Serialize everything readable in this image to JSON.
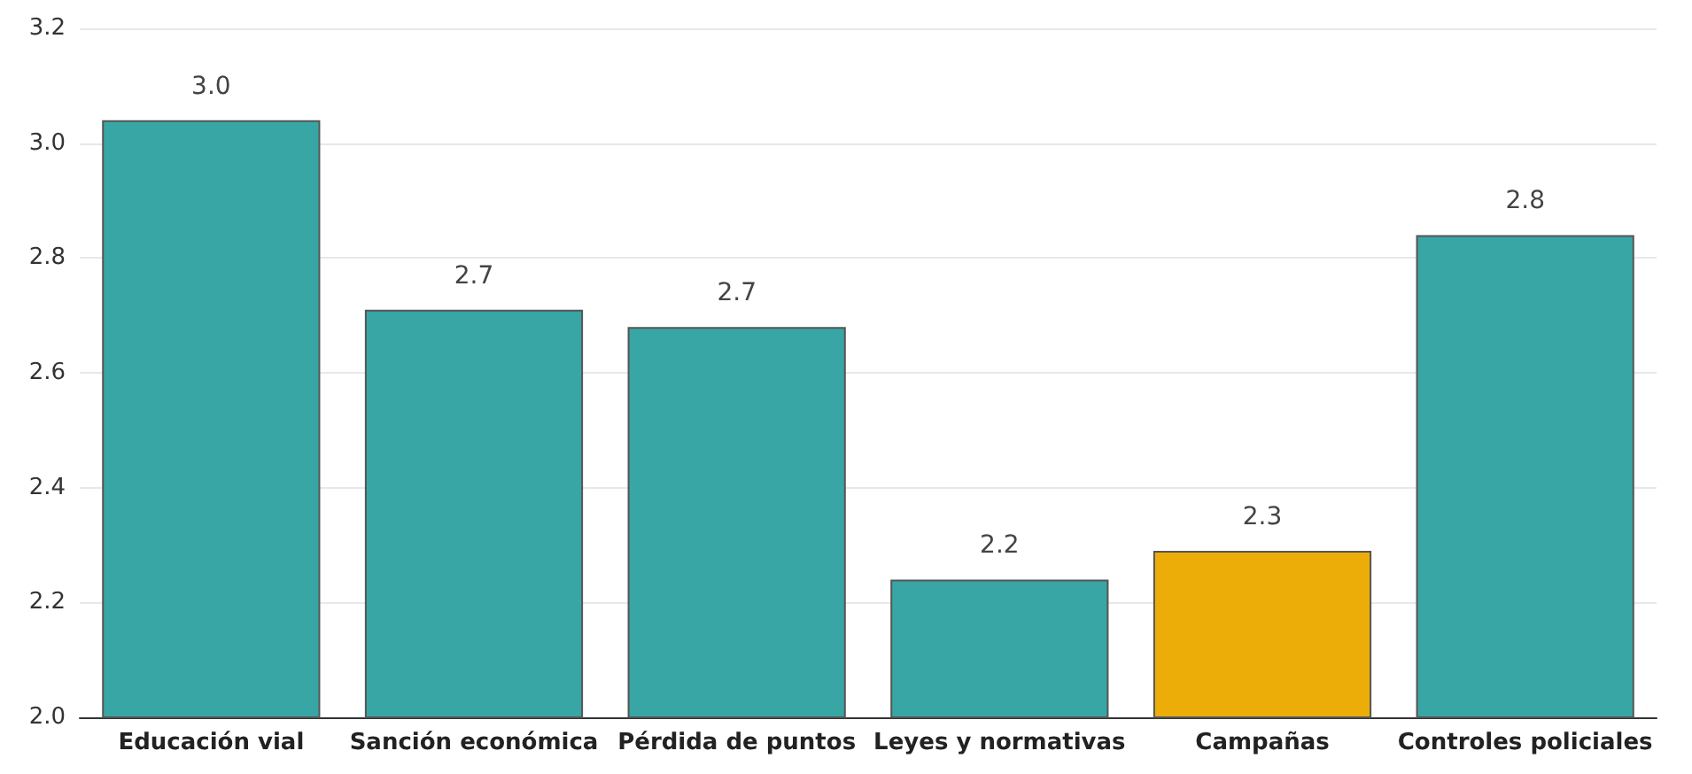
{
  "chart_data": {
    "type": "bar",
    "categories": [
      "Educación vial",
      "Sanción económica",
      "Pérdida de puntos",
      "Leyes y normativas",
      "Campañas",
      "Controles policiales"
    ],
    "values": [
      3.04,
      2.71,
      2.68,
      2.24,
      2.29,
      2.84
    ],
    "value_labels": [
      "3.0",
      "2.7",
      "2.7",
      "2.2",
      "2.3",
      "2.8"
    ],
    "colors": [
      "#38a6a5",
      "#38a6a5",
      "#38a6a5",
      "#38a6a5",
      "#edad08",
      "#38a6a5"
    ],
    "ylim": [
      2.0,
      3.2
    ],
    "yticks": [
      {
        "value": 2.0,
        "label": "2.0"
      },
      {
        "value": 2.2,
        "label": "2.2"
      },
      {
        "value": 2.4,
        "label": "2.4"
      },
      {
        "value": 2.6,
        "label": "2.6"
      },
      {
        "value": 2.8,
        "label": "2.8"
      },
      {
        "value": 3.0,
        "label": "3.0"
      },
      {
        "value": 3.2,
        "label": "3.2"
      }
    ],
    "grid": "y"
  }
}
